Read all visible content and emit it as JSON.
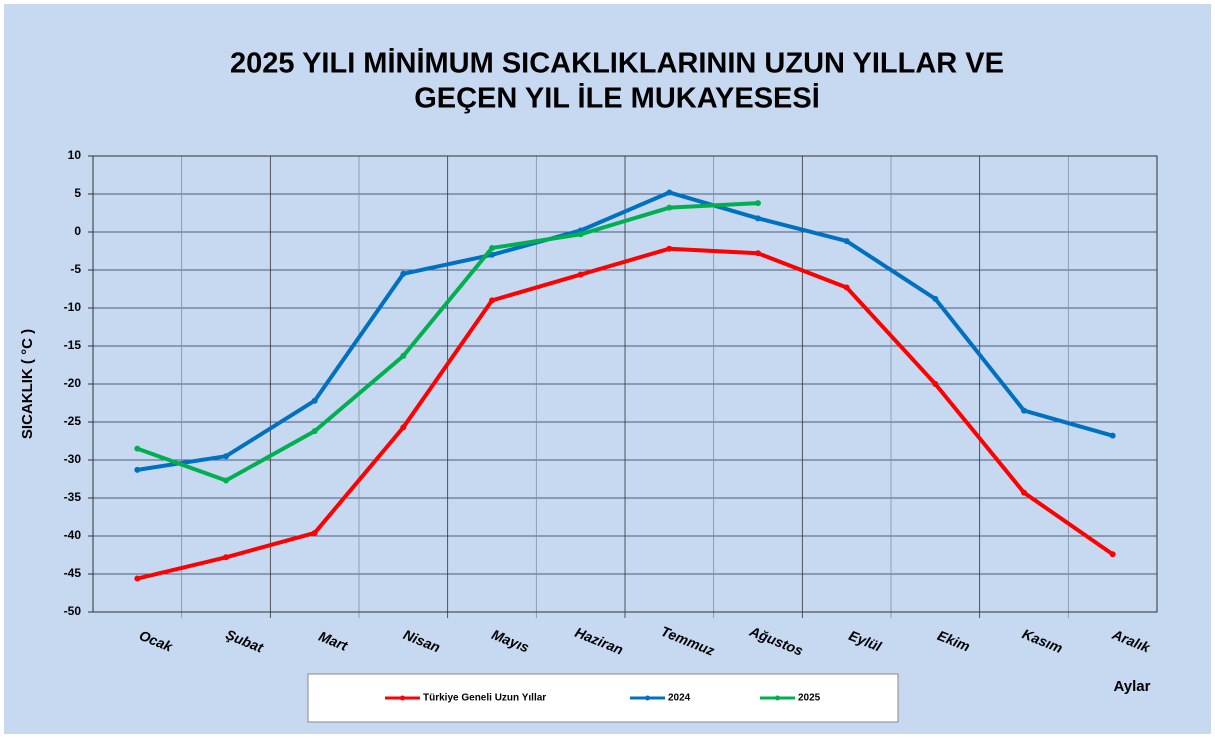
{
  "chart_data": {
    "type": "line",
    "title": [
      "2025 YILI MİNİMUM SICAKLIKLARININ UZUN YILLAR VE",
      "GEÇEN YIL İLE MUKAYESESİ"
    ],
    "y_label": "SICAKLIK ( °C )",
    "x_label": "Aylar",
    "categories": [
      "Ocak",
      "Şubat",
      "Mart",
      "Nisan",
      "Mayıs",
      "Haziran",
      "Temmuz",
      "Ağustos",
      "Eylül",
      "Ekim",
      "Kasım",
      "Aralık"
    ],
    "series": [
      {
        "name": "Türkiye Geneli Uzun Yıllar",
        "color": "#ff0000",
        "values": [
          -45.6,
          -42.8,
          -39.6,
          -25.7,
          -9.0,
          -5.6,
          -2.2,
          -2.8,
          -7.3,
          -20.0,
          -34.3,
          -42.4
        ]
      },
      {
        "name": "2024",
        "color": "#0070c0",
        "values": [
          -31.3,
          -29.5,
          -22.2,
          -5.5,
          -3.0,
          0.2,
          5.2,
          1.8,
          -1.2,
          -8.8,
          -23.5,
          -26.8
        ]
      },
      {
        "name": "2025",
        "color": "#00b050",
        "values": [
          -28.5,
          -32.7,
          -26.2,
          -16.3,
          -2.1,
          -0.3,
          3.2,
          3.8,
          null,
          null,
          null,
          null
        ]
      }
    ],
    "ylim": [
      -50,
      10
    ],
    "yticks": [
      -50,
      -45,
      -40,
      -35,
      -30,
      -25,
      -20,
      -15,
      -10,
      -5,
      0,
      5,
      10
    ],
    "grid": true
  }
}
